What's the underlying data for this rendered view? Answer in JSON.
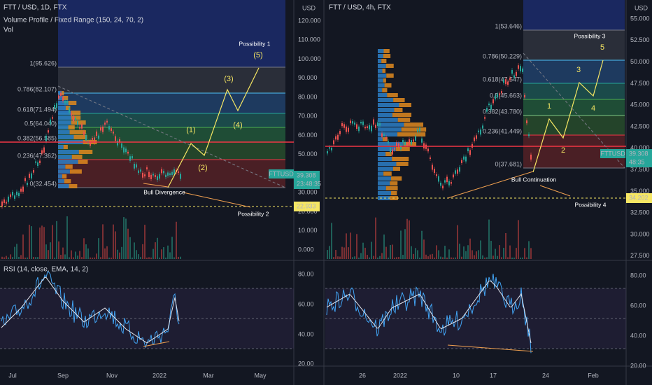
{
  "left": {
    "header": {
      "title": "FTT / USD, 1D, FTX",
      "indicator": "Volume Profile / Fixed Range (150, 24, 70, 2)",
      "volume": "Vol"
    },
    "axis_unit": "USD",
    "price_ticks": [
      "120.000",
      "110.000",
      "100.000",
      "90.000",
      "80.000",
      "70.000",
      "60.000",
      "50.000",
      "40.000",
      "30.000",
      "20.000",
      "10.000",
      "0.000"
    ],
    "rsi_title": "RSI (14, close, EMA, 14, 2)",
    "rsi_ticks": [
      "80.00",
      "60.00",
      "40.00",
      "20.00"
    ],
    "time_labels": [
      "Jul",
      "Sep",
      "Nov",
      "2022",
      "Mar",
      "May"
    ],
    "fib_labels": [
      "1(95.626)",
      "0.786(82.107)",
      "0.618(71.494)",
      "0.5(64.040)",
      "0.382(56.585)",
      "0.236(47.362)",
      "0(32.454)"
    ],
    "annotations": [
      "Possibility 1",
      "(5)",
      "(3)",
      "(1)",
      "(4)",
      "(2)",
      "Bull Divergence",
      "Possibility 2"
    ],
    "price_tag": {
      "symbol": "FTTUSD",
      "price": "39.308",
      "countdown": "23:48:35"
    },
    "level_tag": "22.933"
  },
  "right": {
    "header": {
      "title": "FTT / USD, 4h, FTX"
    },
    "axis_unit": "USD",
    "price_ticks": [
      "55.000",
      "52.500",
      "50.000",
      "47.500",
      "45.000",
      "42.500",
      "40.000",
      "37.500",
      "35.000",
      "32.500",
      "30.000",
      "27.500"
    ],
    "rsi_ticks": [
      "80.00",
      "60.00",
      "40.00",
      "20.00"
    ],
    "time_labels": [
      "26",
      "2022",
      "10",
      "17",
      "24",
      "Feb"
    ],
    "fib_labels": [
      "1(53.646)",
      "0.786(50.229)",
      "0.618(47.547)",
      "0.5(45.663)",
      "0.382(43.780)",
      "0.236(41.449)",
      "0(37.681)"
    ],
    "annotations": [
      "Possibility 3",
      "5",
      "3",
      "1",
      "4",
      "2",
      "Bull Continuation",
      "Possibility 4"
    ],
    "price_tag": {
      "symbol": "FTTUSD",
      "price": "39.308",
      "countdown": "48:35"
    },
    "level_tag": "34.202"
  }
}
